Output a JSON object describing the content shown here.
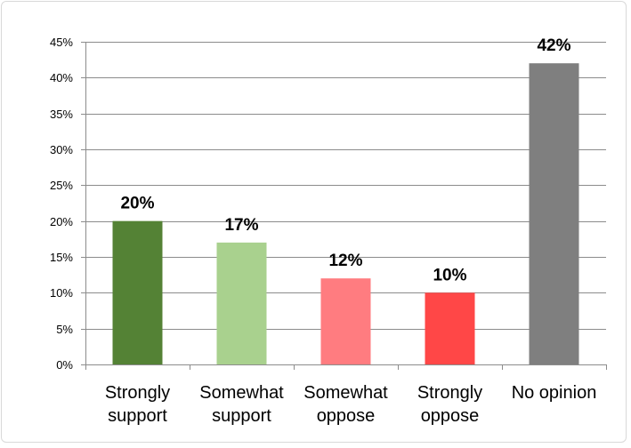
{
  "chart_data": {
    "type": "bar",
    "categories": [
      [
        "Strongly",
        "support"
      ],
      [
        "Somewhat",
        "support"
      ],
      [
        "Somewhat",
        "oppose"
      ],
      [
        "Strongly",
        "oppose"
      ],
      [
        "No opinion"
      ]
    ],
    "values": [
      20,
      17,
      12,
      10,
      42
    ],
    "data_labels": [
      "20%",
      "17%",
      "12%",
      "10%",
      "42%"
    ],
    "bar_colors": [
      "#548235",
      "#A9D18E",
      "#FF7C80",
      "#FF4747",
      "#7F7F7F"
    ],
    "y_ticks": [
      "0%",
      "5%",
      "10%",
      "15%",
      "20%",
      "25%",
      "30%",
      "35%",
      "40%",
      "45%"
    ],
    "ylim": [
      0,
      45
    ],
    "ystep": 5,
    "grid": true,
    "legend": "none",
    "title": "",
    "xlabel": "",
    "ylabel": ""
  }
}
